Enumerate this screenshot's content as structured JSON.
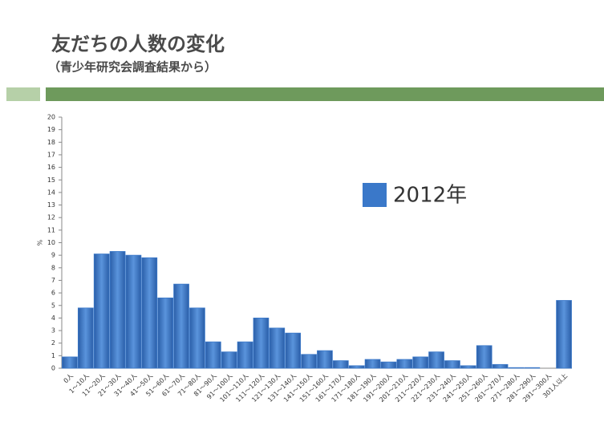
{
  "title": "友だちの人数の変化",
  "subtitle": "（青少年研究会調査結果から）",
  "chart_data": {
    "type": "bar",
    "y_label": "%",
    "categories": [
      "0人",
      "1〜10人",
      "11〜20人",
      "21〜30人",
      "31〜40人",
      "41〜50人",
      "51〜60人",
      "61〜70人",
      "71〜80人",
      "81〜90人",
      "91〜100人",
      "101〜110人",
      "111〜120人",
      "121〜130人",
      "131〜140人",
      "141〜150人",
      "151〜160人",
      "161〜170人",
      "171〜180人",
      "181〜190人",
      "191〜200人",
      "201〜210人",
      "211〜220人",
      "221〜230人",
      "231〜240人",
      "241〜250人",
      "251〜260人",
      "261〜270人",
      "271〜280人",
      "281〜290人",
      "291〜300人",
      "301人以上"
    ],
    "series": [
      {
        "name": "2012年",
        "color": "#3a78c9",
        "values": [
          0.9,
          4.8,
          9.1,
          9.3,
          9.0,
          8.8,
          5.6,
          6.7,
          4.8,
          2.1,
          1.3,
          2.1,
          4.0,
          3.2,
          2.8,
          1.1,
          1.4,
          0.6,
          0.2,
          0.7,
          0.5,
          0.7,
          0.9,
          1.3,
          0.6,
          0.2,
          1.8,
          0.3,
          0.05,
          0.05,
          0,
          5.4
        ]
      }
    ],
    "ylim": [
      0,
      20
    ],
    "yticks": [
      0,
      1,
      2,
      3,
      4,
      5,
      6,
      7,
      8,
      9,
      10,
      11,
      12,
      13,
      14,
      15,
      16,
      17,
      18,
      19,
      20
    ],
    "legend": "center-right"
  }
}
